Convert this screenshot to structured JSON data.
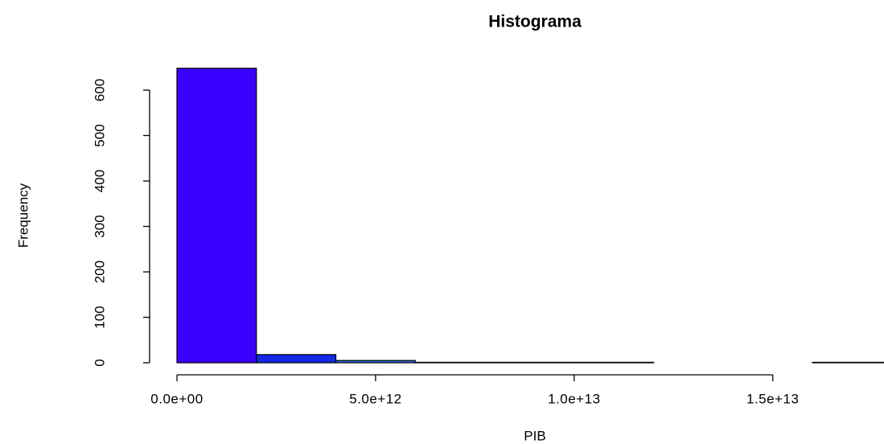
{
  "chart_data": {
    "type": "histogram",
    "title": "Histograma",
    "x_label": "PIB",
    "y_label": "Frequency",
    "bins": [
      0,
      2000000000000,
      4000000000000,
      6000000000000,
      8000000000000,
      10000000000000,
      12000000000000,
      14000000000000,
      16000000000000,
      18000000000000
    ],
    "values": [
      648,
      18,
      5,
      1,
      1,
      1,
      0,
      0,
      1
    ],
    "colors": [
      "#3a00ff",
      "#1428e6",
      "#2a6ad2",
      "#3a8ad6",
      "#3a8ad6",
      "#3a8ad6",
      "#3a8ad6",
      "#3a8ad6",
      "#3a8ad6"
    ],
    "xlim": [
      0,
      17800000000000
    ],
    "ylim": [
      0,
      660
    ],
    "xticks": [
      {
        "value": 0,
        "label": "0.0e+00"
      },
      {
        "value": 5000000000000,
        "label": "5.0e+12"
      },
      {
        "value": 10000000000000,
        "label": "1.0e+13"
      },
      {
        "value": 15000000000000,
        "label": "1.5e+13"
      }
    ],
    "yticks": [
      0,
      100,
      200,
      300,
      400,
      500,
      600
    ]
  }
}
